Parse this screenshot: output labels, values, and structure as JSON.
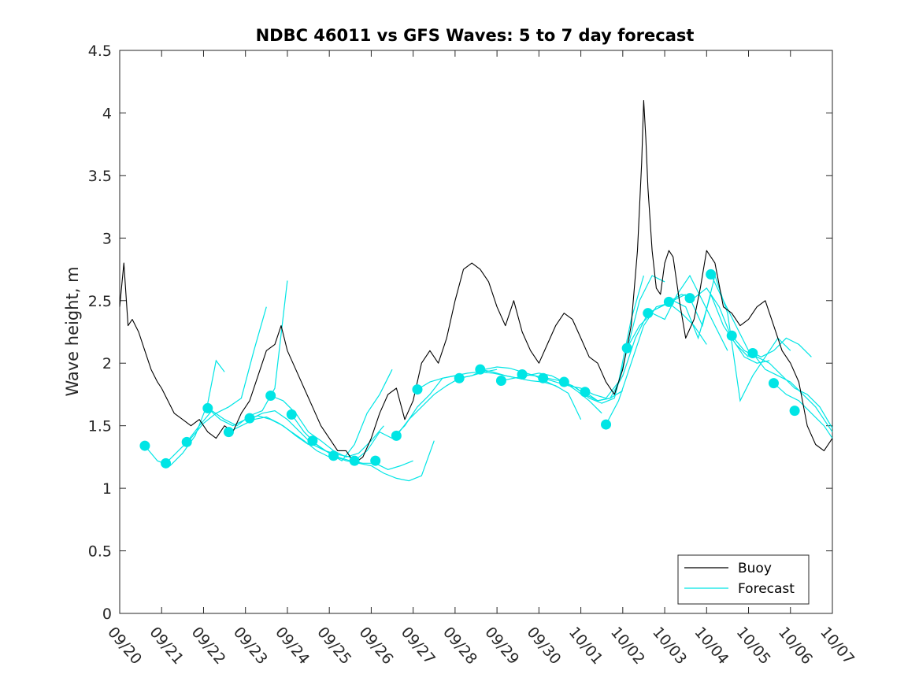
{
  "chart_data": {
    "type": "line",
    "title": "NDBC 46011 vs GFS Waves: 5 to 7 day forecast",
    "xlabel": "",
    "ylabel": "Wave height, m",
    "x_tick_labels": [
      "09/20",
      "09/21",
      "09/22",
      "09/23",
      "09/24",
      "09/25",
      "09/26",
      "09/27",
      "09/28",
      "09/29",
      "09/30",
      "10/01",
      "10/02",
      "10/03",
      "10/04",
      "10/05",
      "10/06",
      "10/07"
    ],
    "xlim_days": [
      0,
      17
    ],
    "ylim": [
      0,
      4.5
    ],
    "y_ticks": [
      0,
      0.5,
      1,
      1.5,
      2,
      2.5,
      3,
      3.5,
      4,
      4.5
    ],
    "y_tick_labels": [
      "0",
      "0.5",
      "1",
      "1.5",
      "2",
      "2.5",
      "3",
      "3.5",
      "4",
      "4.5"
    ],
    "grid": false,
    "legend": {
      "placement": "bottom-right",
      "entries": [
        "Buoy",
        "Forecast"
      ]
    },
    "colors": {
      "buoy": "#000000",
      "forecast": "#00e5e5",
      "axes": "#262626"
    },
    "buoy_series": {
      "name": "Buoy",
      "x_days": [
        0.0,
        0.1,
        0.2,
        0.3,
        0.45,
        0.6,
        0.75,
        0.9,
        1.0,
        1.15,
        1.3,
        1.5,
        1.7,
        1.9,
        2.1,
        2.3,
        2.5,
        2.7,
        2.9,
        3.1,
        3.3,
        3.5,
        3.7,
        3.85,
        4.0,
        4.2,
        4.4,
        4.6,
        4.8,
        5.0,
        5.2,
        5.4,
        5.6,
        5.8,
        6.0,
        6.2,
        6.4,
        6.6,
        6.8,
        7.0,
        7.2,
        7.4,
        7.6,
        7.8,
        8.0,
        8.2,
        8.4,
        8.6,
        8.8,
        9.0,
        9.2,
        9.4,
        9.6,
        9.8,
        10.0,
        10.2,
        10.4,
        10.6,
        10.8,
        11.0,
        11.2,
        11.4,
        11.6,
        11.8,
        12.0,
        12.2,
        12.35,
        12.45,
        12.5,
        12.55,
        12.6,
        12.7,
        12.8,
        12.9,
        13.0,
        13.1,
        13.2,
        13.35,
        13.5,
        13.7,
        13.85,
        14.0,
        14.2,
        14.4,
        14.6,
        14.8,
        15.0,
        15.2,
        15.4,
        15.6,
        15.8,
        16.0,
        16.2,
        16.4,
        16.6,
        16.8,
        17.0
      ],
      "values": [
        2.45,
        2.8,
        2.3,
        2.35,
        2.25,
        2.1,
        1.95,
        1.85,
        1.8,
        1.7,
        1.6,
        1.55,
        1.5,
        1.55,
        1.45,
        1.4,
        1.5,
        1.45,
        1.6,
        1.7,
        1.9,
        2.1,
        2.15,
        2.3,
        2.1,
        1.95,
        1.8,
        1.65,
        1.5,
        1.4,
        1.3,
        1.3,
        1.2,
        1.25,
        1.4,
        1.6,
        1.75,
        1.8,
        1.55,
        1.7,
        2.0,
        2.1,
        2.0,
        2.2,
        2.5,
        2.75,
        2.8,
        2.75,
        2.65,
        2.45,
        2.3,
        2.5,
        2.25,
        2.1,
        2.0,
        2.15,
        2.3,
        2.4,
        2.35,
        2.2,
        2.05,
        2.0,
        1.85,
        1.75,
        1.95,
        2.3,
        2.9,
        3.6,
        4.1,
        3.8,
        3.4,
        2.9,
        2.6,
        2.55,
        2.8,
        2.9,
        2.85,
        2.5,
        2.2,
        2.35,
        2.6,
        2.9,
        2.8,
        2.45,
        2.4,
        2.3,
        2.35,
        2.45,
        2.5,
        2.3,
        2.1,
        2.0,
        1.85,
        1.5,
        1.35,
        1.3,
        1.4
      ]
    },
    "forecast_runs": [
      {
        "x_days": [
          0.6,
          0.9,
          1.2,
          1.5,
          1.8,
          2.1,
          2.3,
          2.5
        ],
        "values": [
          1.34,
          1.22,
          1.18,
          1.28,
          1.42,
          1.68,
          2.02,
          1.93
        ]
      },
      {
        "x_days": [
          1.1,
          1.4,
          1.7,
          2.0,
          2.3,
          2.6,
          2.9,
          3.2,
          3.5
        ],
        "values": [
          1.2,
          1.3,
          1.4,
          1.52,
          1.6,
          1.65,
          1.72,
          2.1,
          2.45
        ]
      },
      {
        "x_days": [
          1.6,
          1.9,
          2.2,
          2.5,
          2.8,
          3.1,
          3.4,
          3.7,
          4.0
        ],
        "values": [
          1.37,
          1.5,
          1.62,
          1.55,
          1.5,
          1.58,
          1.62,
          1.8,
          2.66
        ]
      },
      {
        "x_days": [
          2.1,
          2.4,
          2.7,
          3.0,
          3.3,
          3.6,
          3.9,
          4.2,
          4.5
        ],
        "values": [
          1.64,
          1.55,
          1.5,
          1.55,
          1.58,
          1.55,
          1.5,
          1.42,
          1.35
        ]
      },
      {
        "x_days": [
          2.6,
          2.9,
          3.2,
          3.5,
          3.8,
          4.1,
          4.4,
          4.7,
          5.0
        ],
        "values": [
          1.45,
          1.5,
          1.55,
          1.57,
          1.52,
          1.45,
          1.38,
          1.3,
          1.25
        ]
      },
      {
        "x_days": [
          3.1,
          3.4,
          3.7,
          4.0,
          4.3,
          4.6,
          4.9,
          5.2,
          5.5
        ],
        "values": [
          1.55,
          1.6,
          1.62,
          1.55,
          1.45,
          1.35,
          1.3,
          1.27,
          1.25
        ]
      },
      {
        "x_days": [
          3.6,
          3.9,
          4.2,
          4.5,
          4.8,
          5.1,
          5.4,
          5.7,
          6.0,
          6.3
        ],
        "values": [
          1.74,
          1.7,
          1.6,
          1.45,
          1.38,
          1.3,
          1.25,
          1.28,
          1.38,
          1.5
        ]
      },
      {
        "x_days": [
          4.1,
          4.4,
          4.7,
          5.0,
          5.3,
          5.6,
          5.9,
          6.2,
          6.5
        ],
        "values": [
          1.59,
          1.45,
          1.35,
          1.28,
          1.22,
          1.35,
          1.6,
          1.75,
          1.95
        ]
      },
      {
        "x_days": [
          4.6,
          4.9,
          5.2,
          5.5,
          5.8,
          6.1,
          6.4,
          6.7,
          7.0
        ],
        "values": [
          1.37,
          1.3,
          1.25,
          1.22,
          1.2,
          1.2,
          1.15,
          1.18,
          1.22
        ]
      },
      {
        "x_days": [
          5.1,
          5.4,
          5.7,
          6.0,
          6.3,
          6.6,
          6.9,
          7.2,
          7.5
        ],
        "values": [
          1.26,
          1.22,
          1.2,
          1.18,
          1.12,
          1.08,
          1.06,
          1.1,
          1.38
        ]
      },
      {
        "x_days": [
          5.6,
          5.9,
          6.2,
          6.5,
          6.8,
          7.1,
          7.4,
          7.7,
          8.0
        ],
        "values": [
          1.22,
          1.3,
          1.45,
          1.4,
          1.5,
          1.65,
          1.75,
          1.88,
          1.9
        ]
      },
      {
        "x_days": [
          6.6,
          6.9,
          7.2,
          7.5,
          7.8,
          8.1,
          8.4,
          8.7,
          9.0
        ],
        "values": [
          1.42,
          1.55,
          1.65,
          1.75,
          1.82,
          1.88,
          1.9,
          1.93,
          1.95
        ]
      },
      {
        "x_days": [
          7.1,
          7.4,
          7.7,
          8.0,
          8.3,
          8.6,
          8.9,
          9.2,
          9.5
        ],
        "values": [
          1.79,
          1.85,
          1.88,
          1.9,
          1.92,
          1.93,
          1.92,
          1.9,
          1.88
        ]
      },
      {
        "x_days": [
          8.1,
          8.4,
          8.7,
          9.0,
          9.3,
          9.6,
          9.9,
          10.2,
          10.5
        ],
        "values": [
          1.88,
          1.9,
          1.95,
          1.97,
          1.96,
          1.93,
          1.9,
          1.85,
          1.8
        ]
      },
      {
        "x_days": [
          8.6,
          8.9,
          9.2,
          9.5,
          9.8,
          10.1,
          10.4,
          10.7,
          11.0
        ],
        "values": [
          1.95,
          1.93,
          1.9,
          1.88,
          1.86,
          1.85,
          1.82,
          1.76,
          1.55
        ]
      },
      {
        "x_days": [
          9.1,
          9.4,
          9.7,
          10.0,
          10.3,
          10.6,
          10.9,
          11.2,
          11.5
        ],
        "values": [
          1.86,
          1.88,
          1.9,
          1.92,
          1.9,
          1.85,
          1.78,
          1.7,
          1.6
        ]
      },
      {
        "x_days": [
          9.6,
          9.9,
          10.2,
          10.5,
          10.8,
          11.1,
          11.4,
          11.7,
          12.0
        ],
        "values": [
          1.91,
          1.9,
          1.88,
          1.86,
          1.82,
          1.75,
          1.7,
          1.72,
          1.78
        ]
      },
      {
        "x_days": [
          10.1,
          10.4,
          10.7,
          11.0,
          11.3,
          11.6,
          11.9,
          12.2,
          12.5
        ],
        "values": [
          1.88,
          1.85,
          1.82,
          1.8,
          1.75,
          1.72,
          1.85,
          2.35,
          2.7
        ]
      },
      {
        "x_days": [
          10.6,
          10.9,
          11.2,
          11.5,
          11.8,
          12.1,
          12.4,
          12.7,
          13.0
        ],
        "values": [
          1.85,
          1.8,
          1.72,
          1.68,
          1.72,
          2.1,
          2.5,
          2.7,
          2.65
        ]
      },
      {
        "x_days": [
          11.1,
          11.4,
          11.7,
          12.0,
          12.3,
          12.6,
          12.9,
          13.2,
          13.5
        ],
        "values": [
          1.77,
          1.7,
          1.72,
          1.9,
          2.2,
          2.4,
          2.45,
          2.5,
          2.55
        ]
      },
      {
        "x_days": [
          11.6,
          11.9,
          12.2,
          12.5,
          12.8,
          13.1,
          13.4,
          13.7,
          14.0
        ],
        "values": [
          1.51,
          1.7,
          2.0,
          2.3,
          2.45,
          2.48,
          2.4,
          2.3,
          2.15
        ]
      },
      {
        "x_days": [
          12.1,
          12.4,
          12.7,
          13.0,
          13.3,
          13.6,
          13.9,
          14.2,
          14.5
        ],
        "values": [
          2.12,
          2.3,
          2.4,
          2.35,
          2.55,
          2.7,
          2.5,
          2.3,
          2.1
        ]
      },
      {
        "x_days": [
          12.6,
          12.9,
          13.2,
          13.5,
          13.8,
          14.1,
          14.4,
          14.7,
          15.0
        ],
        "values": [
          2.4,
          2.45,
          2.5,
          2.45,
          2.2,
          2.55,
          2.3,
          2.15,
          2.05
        ]
      },
      {
        "x_days": [
          13.1,
          13.4,
          13.7,
          14.0,
          14.3,
          14.6,
          14.9,
          15.2,
          15.5
        ],
        "values": [
          2.49,
          2.55,
          2.52,
          2.6,
          2.45,
          2.2,
          2.05,
          2.0,
          2.02
        ]
      },
      {
        "x_days": [
          13.6,
          13.9,
          14.2,
          14.5,
          14.8,
          15.1,
          15.4,
          15.7,
          16.0
        ],
        "values": [
          2.52,
          2.3,
          2.7,
          2.4,
          1.7,
          1.9,
          2.05,
          2.2,
          2.1
        ]
      },
      {
        "x_days": [
          14.1,
          14.4,
          14.7,
          15.0,
          15.3,
          15.6,
          15.9,
          16.2,
          16.5
        ],
        "values": [
          2.71,
          2.5,
          2.3,
          2.1,
          2.05,
          2.1,
          2.2,
          2.15,
          2.05
        ]
      },
      {
        "x_days": [
          14.6,
          14.9,
          15.2,
          15.5,
          15.8,
          16.1,
          16.4,
          16.7,
          17.0
        ],
        "values": [
          2.22,
          2.1,
          2.05,
          2.0,
          1.9,
          1.8,
          1.75,
          1.65,
          1.48
        ]
      },
      {
        "x_days": [
          15.1,
          15.4,
          15.7,
          16.0,
          16.3,
          16.6,
          16.9,
          17.0
        ],
        "values": [
          2.08,
          1.95,
          1.9,
          1.85,
          1.75,
          1.65,
          1.5,
          1.45
        ]
      },
      {
        "x_days": [
          15.6,
          15.9,
          16.2,
          16.5,
          16.8,
          17.0
        ],
        "values": [
          1.84,
          1.75,
          1.7,
          1.6,
          1.5,
          1.4
        ]
      }
    ],
    "forecast_markers": {
      "x_days": [
        0.6,
        1.1,
        1.6,
        2.1,
        2.6,
        3.1,
        3.6,
        4.1,
        4.6,
        5.1,
        5.6,
        6.1,
        6.6,
        7.1,
        8.1,
        8.6,
        9.1,
        9.6,
        10.1,
        10.6,
        11.1,
        11.6,
        12.1,
        12.6,
        13.1,
        13.6,
        14.1,
        14.6,
        15.1,
        15.6,
        16.1
      ],
      "values": [
        1.34,
        1.2,
        1.37,
        1.64,
        1.45,
        1.56,
        1.74,
        1.59,
        1.38,
        1.26,
        1.22,
        1.22,
        1.42,
        1.79,
        1.88,
        1.95,
        1.86,
        1.91,
        1.88,
        1.85,
        1.77,
        1.51,
        2.12,
        2.4,
        2.49,
        2.52,
        2.71,
        2.22,
        2.08,
        1.84,
        1.62
      ]
    }
  }
}
